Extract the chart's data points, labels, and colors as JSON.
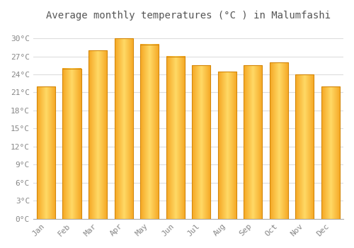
{
  "title": "Average monthly temperatures (°C ) in Malumfashi",
  "months": [
    "Jan",
    "Feb",
    "Mar",
    "Apr",
    "May",
    "Jun",
    "Jul",
    "Aug",
    "Sep",
    "Oct",
    "Nov",
    "Dec"
  ],
  "values": [
    22.0,
    25.0,
    28.0,
    30.0,
    29.0,
    27.0,
    25.5,
    24.5,
    25.5,
    26.0,
    24.0,
    22.0
  ],
  "bar_color_center": "#FFD966",
  "bar_color_edge": "#F5A623",
  "bar_edge_color": "#D4870A",
  "yticks": [
    0,
    3,
    6,
    9,
    12,
    15,
    18,
    21,
    24,
    27,
    30
  ],
  "ytick_labels": [
    "0°C",
    "3°C",
    "6°C",
    "9°C",
    "12°C",
    "15°C",
    "18°C",
    "21°C",
    "24°C",
    "27°C",
    "30°C"
  ],
  "ylim": [
    0,
    32
  ],
  "background_color": "#ffffff",
  "grid_color": "#dddddd",
  "title_fontsize": 10,
  "tick_fontsize": 8,
  "bar_width": 0.72
}
